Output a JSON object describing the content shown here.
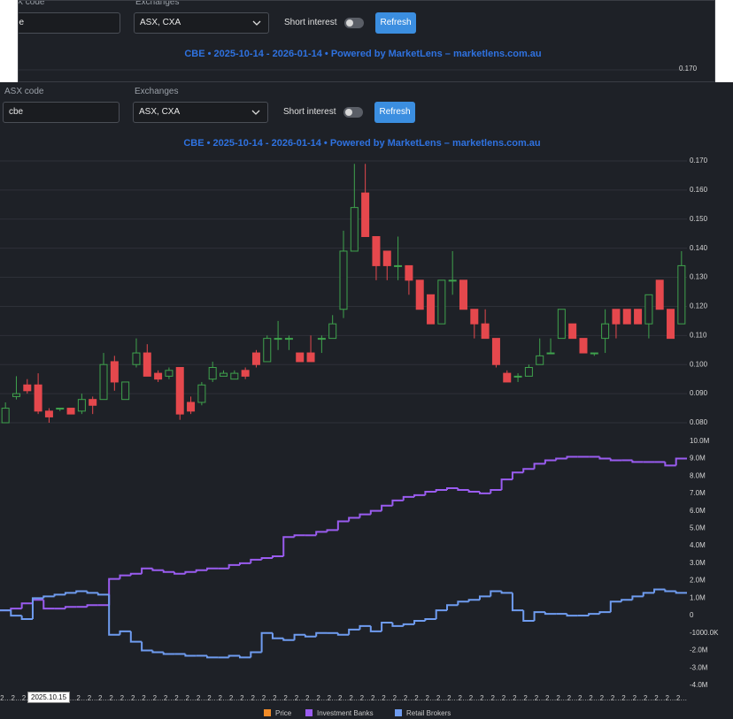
{
  "controls": {
    "asx_code_label": "ASX code",
    "asx_code": "cbe",
    "exchanges_label": "Exchanges",
    "exchanges": "ASX, CXA",
    "short_interest_label": "Short interest",
    "refresh": "Refresh"
  },
  "chart_data": [
    {
      "type": "candlestick",
      "title": "CBE • 2025-10-14 - 2026-01-14 • Powered by MarketLens – marketlens.com.au",
      "name": "Price",
      "color": "#f28c28",
      "up_color": "#3fa34d",
      "down_color": "#e5484d",
      "grid": true,
      "ylim": [
        0.08,
        0.17
      ],
      "yticks": [
        {
          "value": 0.08,
          "label": "0.080"
        },
        {
          "value": 0.09,
          "label": "0.090"
        },
        {
          "value": 0.1,
          "label": "0.100"
        },
        {
          "value": 0.11,
          "label": "0.110"
        },
        {
          "value": 0.12,
          "label": "0.120"
        },
        {
          "value": 0.13,
          "label": "0.130"
        },
        {
          "value": 0.14,
          "label": "0.140"
        },
        {
          "value": 0.15,
          "label": "0.150"
        },
        {
          "value": 0.16,
          "label": "0.160"
        },
        {
          "value": 0.17,
          "label": "0.170"
        }
      ],
      "open": [
        0.08,
        0.089,
        0.093,
        0.093,
        0.084,
        0.085,
        0.085,
        0.084,
        0.088,
        0.088,
        0.101,
        0.088,
        0.1,
        0.104,
        0.097,
        0.096,
        0.099,
        0.087,
        0.087,
        0.095,
        0.096,
        0.095,
        0.098,
        0.104,
        0.101,
        0.109,
        0.109,
        0.104,
        0.104,
        0.109,
        0.109,
        0.119,
        0.139,
        0.159,
        0.144,
        0.139,
        0.134,
        0.134,
        0.129,
        0.124,
        0.114,
        0.129,
        0.129,
        0.119,
        0.114,
        0.109,
        0.097,
        0.096,
        0.096,
        0.1,
        0.104,
        0.109,
        0.114,
        0.109,
        0.104,
        0.109,
        0.119,
        0.119,
        0.119,
        0.114,
        0.129,
        0.119,
        0.114
      ],
      "high": [
        0.087,
        0.096,
        0.095,
        0.097,
        0.085,
        0.085,
        0.085,
        0.09,
        0.089,
        0.104,
        0.103,
        0.094,
        0.109,
        0.107,
        0.098,
        0.099,
        0.099,
        0.089,
        0.094,
        0.101,
        0.098,
        0.098,
        0.099,
        0.105,
        0.11,
        0.115,
        0.11,
        0.104,
        0.11,
        0.11,
        0.117,
        0.146,
        0.169,
        0.169,
        0.144,
        0.139,
        0.144,
        0.134,
        0.129,
        0.124,
        0.129,
        0.139,
        0.129,
        0.119,
        0.119,
        0.109,
        0.098,
        0.097,
        0.1,
        0.109,
        0.109,
        0.119,
        0.114,
        0.109,
        0.104,
        0.119,
        0.119,
        0.119,
        0.119,
        0.124,
        0.129,
        0.119,
        0.139
      ],
      "low": [
        0.08,
        0.088,
        0.09,
        0.083,
        0.08,
        0.084,
        0.083,
        0.083,
        0.083,
        0.088,
        0.091,
        0.088,
        0.099,
        0.096,
        0.094,
        0.095,
        0.081,
        0.083,
        0.086,
        0.094,
        0.096,
        0.095,
        0.095,
        0.099,
        0.101,
        0.105,
        0.105,
        0.101,
        0.101,
        0.104,
        0.109,
        0.116,
        0.139,
        0.144,
        0.129,
        0.129,
        0.129,
        0.124,
        0.119,
        0.114,
        0.114,
        0.124,
        0.119,
        0.109,
        0.109,
        0.099,
        0.094,
        0.094,
        0.096,
        0.1,
        0.104,
        0.109,
        0.109,
        0.104,
        0.103,
        0.104,
        0.109,
        0.114,
        0.114,
        0.109,
        0.119,
        0.109,
        0.114
      ],
      "close": [
        0.085,
        0.09,
        0.091,
        0.084,
        0.082,
        0.085,
        0.083,
        0.088,
        0.086,
        0.1,
        0.094,
        0.094,
        0.104,
        0.096,
        0.095,
        0.098,
        0.083,
        0.084,
        0.093,
        0.099,
        0.097,
        0.097,
        0.096,
        0.1,
        0.109,
        0.109,
        0.109,
        0.101,
        0.101,
        0.109,
        0.114,
        0.139,
        0.154,
        0.144,
        0.134,
        0.134,
        0.134,
        0.129,
        0.119,
        0.114,
        0.129,
        0.129,
        0.119,
        0.114,
        0.109,
        0.1,
        0.094,
        0.096,
        0.099,
        0.103,
        0.104,
        0.119,
        0.109,
        0.104,
        0.104,
        0.114,
        0.114,
        0.114,
        0.114,
        0.124,
        0.119,
        0.109,
        0.134
      ]
    },
    {
      "type": "line",
      "step": true,
      "grid": false,
      "categories": [
        "2025.10.15",
        "2025.10.16",
        "2025.10.17",
        "2025.10.20",
        "2025.10.21",
        "2025.10.22",
        "2025.10.23",
        "2025.10.24",
        "2025.10.27",
        "2025.10.28",
        "2025.10.29",
        "2025.10.30",
        "2025.10.31",
        "2025.11.03",
        "2025.11.04",
        "2025.11.05",
        "2025.11.06",
        "2025.11.07",
        "2025.11.10",
        "2025.11.11",
        "2025.11.12",
        "2025.11.13",
        "2025.11.14",
        "2025.11.17",
        "2025.11.18",
        "2025.11.19",
        "2025.11.20",
        "2025.11.21",
        "2025.11.24",
        "2025.11.25",
        "2025.11.26",
        "2025.11.27",
        "2025.11.28",
        "2025.12.01",
        "2025.12.02",
        "2025.12.03",
        "2025.12.04",
        "2025.12.05",
        "2025.12.08",
        "2025.12.09",
        "2025.12.10",
        "2025.12.11",
        "2025.12.12",
        "2025.12.15",
        "2025.12.16",
        "2025.12.17",
        "2025.12.18",
        "2025.12.19",
        "2025.12.22",
        "2025.12.23",
        "2025.12.24",
        "2025.12.29",
        "2025.12.30",
        "2025.12.31",
        "2026.01.02",
        "2026.01.05",
        "2026.01.06",
        "2026.01.07",
        "2026.01.08",
        "2026.01.09",
        "2026.01.12",
        "2026.01.13",
        "2026.01.14"
      ],
      "ylim": [
        -4000000,
        11000000
      ],
      "yticks": [
        {
          "value": -4000000,
          "label": "-4.0M"
        },
        {
          "value": -3000000,
          "label": "-3.0M"
        },
        {
          "value": -2000000,
          "label": "-2.0M"
        },
        {
          "value": -1000000,
          "label": "-1000.0K"
        },
        0,
        {
          "value": 1000000,
          "label": "1.0M"
        },
        {
          "value": 2000000,
          "label": "2.0M"
        },
        {
          "value": 3000000,
          "label": "3.0M"
        },
        {
          "value": 4000000,
          "label": "4.0M"
        },
        {
          "value": 5000000,
          "label": "5.0M"
        },
        {
          "value": 6000000,
          "label": "6.0M"
        },
        {
          "value": 7000000,
          "label": "7.0M"
        },
        {
          "value": 8000000,
          "label": "8.0M"
        },
        {
          "value": 9000000,
          "label": "9.0M"
        },
        {
          "value": 10000000,
          "label": "10.0M"
        }
      ],
      "series": [
        {
          "name": "Investment Banks",
          "color": "#9a5cf0",
          "values": [
            300000,
            400000,
            700000,
            900000,
            400000,
            400000,
            500000,
            500000,
            600000,
            600000,
            2100000,
            2300000,
            2400000,
            2700000,
            2600000,
            2500000,
            2400000,
            2500000,
            2600000,
            2700000,
            2700000,
            2900000,
            3000000,
            3200000,
            3300000,
            3400000,
            4500000,
            4600000,
            4600000,
            4800000,
            4900000,
            5400000,
            5600000,
            5800000,
            6000000,
            6300000,
            6600000,
            6800000,
            6900000,
            7100000,
            7200000,
            7300000,
            7200000,
            7100000,
            7000000,
            7200000,
            7800000,
            8200000,
            8400000,
            8700000,
            8900000,
            9000000,
            9100000,
            9100000,
            9100000,
            9000000,
            8900000,
            8900000,
            8800000,
            8800000,
            8800000,
            8600000,
            9000000
          ]
        },
        {
          "name": "Retail Brokers",
          "color": "#6f9cf0",
          "values": [
            300000,
            0,
            -200000,
            1000000,
            1100000,
            1200000,
            1300000,
            1400000,
            1300000,
            1200000,
            -1100000,
            -900000,
            -1500000,
            -2000000,
            -2100000,
            -2200000,
            -2200000,
            -2300000,
            -2300000,
            -2400000,
            -2400000,
            -2300000,
            -2400000,
            -2100000,
            -1000000,
            -1300000,
            -1400000,
            -1100000,
            -1200000,
            -1000000,
            -1000000,
            -1100000,
            -800000,
            -600000,
            -900000,
            -400000,
            -600000,
            -500000,
            -300000,
            -200000,
            300000,
            600000,
            800000,
            900000,
            1100000,
            1400000,
            1300000,
            300000,
            -300000,
            200000,
            100000,
            100000,
            0,
            0,
            100000,
            200000,
            800000,
            900000,
            1100000,
            1300000,
            1500000,
            1400000,
            1300000
          ]
        }
      ]
    }
  ]
}
